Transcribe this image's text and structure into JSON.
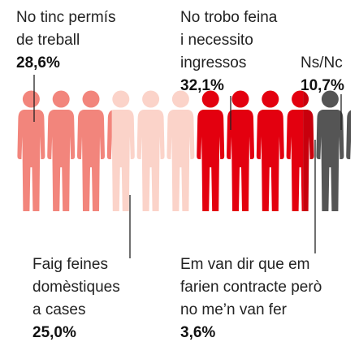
{
  "chart_data": {
    "type": "pictogram",
    "series": [
      {
        "name": [
          "No tinc permís",
          "de treball"
        ],
        "values": [
          28.6
        ],
        "value_labels": [
          "28,6%"
        ],
        "color": "#f2857c"
      },
      {
        "name": [
          "Faig feines",
          "domèstiques",
          "a cases"
        ],
        "values": [
          25.0
        ],
        "value_labels": [
          "25,0%"
        ],
        "color": "#fbd3c9"
      },
      {
        "name": [
          "No trobo feina",
          "i necessito",
          "ingressos"
        ],
        "values": [
          32.1
        ],
        "value_labels": [
          "32,1%"
        ],
        "color": "#e3000f"
      },
      {
        "name": [
          "Em van dir que em",
          "farien contracte però",
          "no me’n van fer"
        ],
        "values": [
          3.6
        ],
        "value_labels": [
          "3,6%"
        ],
        "color": "#c8000d"
      },
      {
        "name": [
          "Ns/Nc"
        ],
        "values": [
          10.7
        ],
        "value_labels": [
          "10,7%"
        ],
        "color": "#555555"
      }
    ]
  }
}
